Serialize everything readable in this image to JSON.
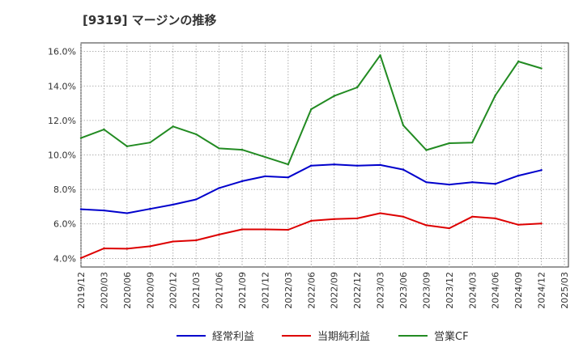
{
  "chart_data": {
    "type": "line",
    "title": "[9319]  マージンの推移",
    "x": [
      "2019/12",
      "2020/03",
      "2020/06",
      "2020/09",
      "2020/12",
      "2021/03",
      "2021/06",
      "2021/09",
      "2021/12",
      "2022/03",
      "2022/06",
      "2022/09",
      "2022/12",
      "2023/03",
      "2023/06",
      "2023/09",
      "2023/12",
      "2024/03",
      "2024/06",
      "2024/09",
      "2024/12"
    ],
    "x_ticks": [
      "2019/12",
      "2020/03",
      "2020/06",
      "2020/09",
      "2020/12",
      "2021/03",
      "2021/06",
      "2021/09",
      "2021/12",
      "2022/03",
      "2022/06",
      "2022/09",
      "2022/12",
      "2023/03",
      "2023/06",
      "2023/09",
      "2023/12",
      "2024/03",
      "2024/06",
      "2024/09",
      "2024/12",
      "2025/03"
    ],
    "y_ticks": [
      "4.0%",
      "6.0%",
      "8.0%",
      "10.0%",
      "12.0%",
      "14.0%",
      "16.0%"
    ],
    "ylim": [
      3.5,
      16.5
    ],
    "grid": true,
    "legend_position": "bottom",
    "series": [
      {
        "name": "経常利益",
        "color": "#0000cc",
        "values": [
          6.85,
          6.78,
          6.62,
          6.87,
          7.12,
          7.42,
          8.08,
          8.48,
          8.76,
          8.7,
          9.38,
          9.45,
          9.38,
          9.42,
          9.15,
          8.42,
          8.28,
          8.42,
          8.32,
          8.8,
          9.12
        ]
      },
      {
        "name": "当期純利益",
        "color": "#dd0000",
        "values": [
          4.02,
          4.58,
          4.56,
          4.7,
          4.98,
          5.05,
          5.38,
          5.68,
          5.68,
          5.66,
          6.18,
          6.28,
          6.32,
          6.62,
          6.42,
          5.92,
          5.75,
          6.42,
          6.32,
          5.95,
          6.02
        ]
      },
      {
        "name": "営業CF",
        "color": "#228b22",
        "values": [
          10.98,
          11.48,
          10.5,
          10.72,
          11.65,
          11.2,
          10.38,
          10.3,
          9.88,
          9.45,
          12.65,
          13.42,
          13.92,
          15.78,
          11.72,
          10.28,
          10.68,
          10.72,
          13.45,
          15.42,
          15.02
        ]
      }
    ]
  }
}
